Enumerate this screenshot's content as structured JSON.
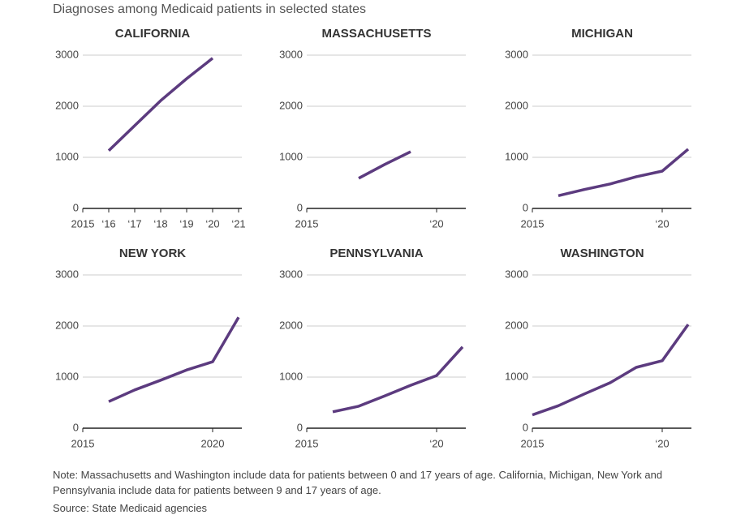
{
  "title": "Diagnoses among Medicaid patients in selected states",
  "note": "Note: Massachusetts and Washington include data for patients between 0 and 17 years of age. California, Michigan, New York and Pennsylvania include data for patients between 9 and 17 years of age.",
  "source": "Source: State Medicaid agencies",
  "chart_data": [
    {
      "type": "line",
      "title": "CALIFORNIA",
      "x": [
        2016,
        2017,
        2018,
        2019,
        2020
      ],
      "values": [
        1130,
        1620,
        2110,
        2540,
        2940
      ],
      "color": "#5c3b7f",
      "xlim": [
        2015,
        2021
      ],
      "xticks": [
        2015,
        {
          "value": 2016,
          "label": "‘16"
        },
        {
          "value": 2017,
          "label": "‘17"
        },
        {
          "value": 2018,
          "label": "‘18"
        },
        {
          "value": 2019,
          "label": "‘19"
        },
        {
          "value": 2020,
          "label": "‘20"
        },
        {
          "value": 2021,
          "label": "‘21"
        }
      ],
      "ylim": [
        0,
        3000
      ],
      "yticks": [
        0,
        1000,
        2000,
        3000
      ],
      "grid": true
    },
    {
      "type": "line",
      "title": "MASSACHUSETTS",
      "x": [
        2017,
        2018,
        2019
      ],
      "values": [
        590,
        860,
        1110
      ],
      "color": "#5c3b7f",
      "xlim": [
        2015,
        2021
      ],
      "xticks": [
        2015,
        {
          "value": 2020,
          "label": "‘20"
        }
      ],
      "ylim": [
        0,
        3000
      ],
      "yticks": [
        0,
        1000,
        2000,
        3000
      ],
      "grid": true
    },
    {
      "type": "line",
      "title": "MICHIGAN",
      "x": [
        2016,
        2017,
        2018,
        2019,
        2020,
        2021
      ],
      "values": [
        250,
        370,
        480,
        620,
        730,
        1160
      ],
      "color": "#5c3b7f",
      "xlim": [
        2015,
        2021
      ],
      "xticks": [
        2015,
        {
          "value": 2020,
          "label": "‘20"
        }
      ],
      "ylim": [
        0,
        3000
      ],
      "yticks": [
        0,
        1000,
        2000,
        3000
      ],
      "grid": true
    },
    {
      "type": "line",
      "title": "NEW YORK",
      "x": [
        2016,
        2017,
        2018,
        2019,
        2020,
        2021
      ],
      "values": [
        520,
        750,
        940,
        1140,
        1300,
        2170
      ],
      "color": "#5c3b7f",
      "xlim": [
        2015,
        2021
      ],
      "xticks": [
        2015,
        2020
      ],
      "ylim": [
        0,
        3000
      ],
      "yticks": [
        0,
        1000,
        2000,
        3000
      ],
      "grid": true
    },
    {
      "type": "line",
      "title": "PENNSYLVANIA",
      "x": [
        2016,
        2017,
        2018,
        2019,
        2020,
        2021
      ],
      "values": [
        320,
        430,
        630,
        840,
        1030,
        1590
      ],
      "color": "#5c3b7f",
      "xlim": [
        2015,
        2021
      ],
      "xticks": [
        2015,
        {
          "value": 2020,
          "label": "‘20"
        }
      ],
      "ylim": [
        0,
        3000
      ],
      "yticks": [
        0,
        1000,
        2000,
        3000
      ],
      "grid": true
    },
    {
      "type": "line",
      "title": "WASHINGTON",
      "x": [
        2015,
        2016,
        2017,
        2018,
        2019,
        2020,
        2021
      ],
      "values": [
        260,
        440,
        670,
        890,
        1190,
        1320,
        2030
      ],
      "color": "#5c3b7f",
      "xlim": [
        2015,
        2021
      ],
      "xticks": [
        2015,
        {
          "value": 2020,
          "label": "‘20"
        }
      ],
      "ylim": [
        0,
        3000
      ],
      "yticks": [
        0,
        1000,
        2000,
        3000
      ],
      "grid": true
    }
  ]
}
